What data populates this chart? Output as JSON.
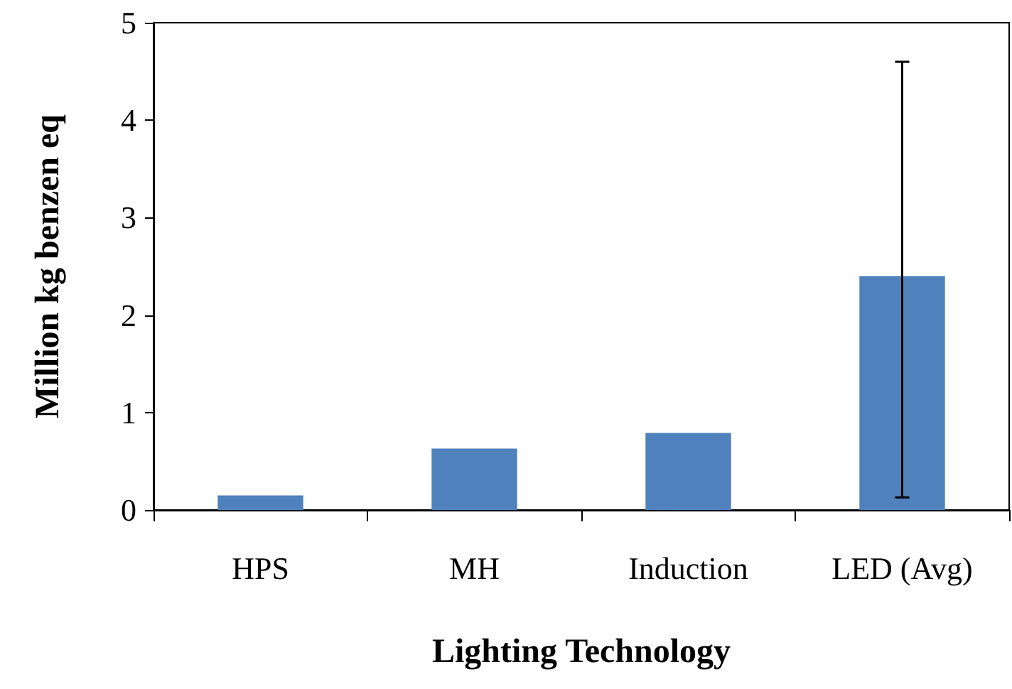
{
  "chart_data": {
    "type": "bar",
    "xlabel": "Lighting Technology",
    "ylabel": "Million kg benzen eq",
    "categories": [
      "HPS",
      "MH",
      "Induction",
      "LED (Avg)"
    ],
    "values": [
      0.15,
      0.63,
      0.79,
      2.4
    ],
    "errors": [
      null,
      null,
      null,
      [
        0.13,
        4.6
      ]
    ],
    "color": "#4f81bd",
    "ylim": [
      0,
      5
    ],
    "yticks": [
      0,
      1,
      2,
      3,
      4,
      5
    ],
    "grid": false
  }
}
